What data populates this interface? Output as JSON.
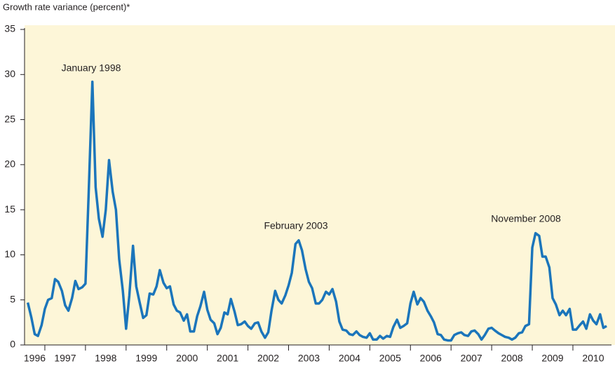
{
  "chart_data": {
    "type": "line",
    "y_label": "Growth rate variance (percent)*",
    "annotations": [
      "January 1998",
      "February 2003",
      "November 2008"
    ],
    "x": [
      1996.58,
      1996.67,
      1996.75,
      1996.83,
      1996.92,
      1997,
      1997.08,
      1997.17,
      1997.25,
      1997.33,
      1997.42,
      1997.5,
      1997.58,
      1997.67,
      1997.75,
      1997.83,
      1997.92,
      1998,
      1998.08,
      1998.17,
      1998.25,
      1998.33,
      1998.42,
      1998.5,
      1998.58,
      1998.67,
      1998.75,
      1998.83,
      1998.92,
      1999,
      1999.08,
      1999.17,
      1999.25,
      1999.33,
      1999.42,
      1999.5,
      1999.58,
      1999.67,
      1999.75,
      1999.83,
      1999.92,
      2000,
      2000.08,
      2000.17,
      2000.25,
      2000.33,
      2000.42,
      2000.5,
      2000.58,
      2000.67,
      2000.75,
      2000.83,
      2000.92,
      2001,
      2001.08,
      2001.17,
      2001.25,
      2001.33,
      2001.42,
      2001.5,
      2001.58,
      2001.67,
      2001.75,
      2001.83,
      2001.92,
      2002,
      2002.08,
      2002.17,
      2002.25,
      2002.33,
      2002.42,
      2002.5,
      2002.58,
      2002.67,
      2002.75,
      2002.83,
      2002.92,
      2003,
      2003.08,
      2003.17,
      2003.25,
      2003.33,
      2003.42,
      2003.5,
      2003.58,
      2003.67,
      2003.75,
      2003.83,
      2003.92,
      2004,
      2004.08,
      2004.17,
      2004.25,
      2004.33,
      2004.42,
      2004.5,
      2004.58,
      2004.67,
      2004.75,
      2004.83,
      2004.92,
      2005,
      2005.08,
      2005.17,
      2005.25,
      2005.33,
      2005.42,
      2005.5,
      2005.58,
      2005.67,
      2005.75,
      2005.83,
      2005.92,
      2006,
      2006.08,
      2006.17,
      2006.25,
      2006.33,
      2006.42,
      2006.5,
      2006.58,
      2006.67,
      2006.75,
      2006.83,
      2006.92,
      2007,
      2007.08,
      2007.17,
      2007.25,
      2007.33,
      2007.42,
      2007.5,
      2007.58,
      2007.67,
      2007.75,
      2007.83,
      2007.92,
      2008,
      2008.08,
      2008.17,
      2008.25,
      2008.33,
      2008.42,
      2008.5,
      2008.58,
      2008.67,
      2008.75,
      2008.83,
      2008.92,
      2009,
      2009.08,
      2009.17,
      2009.25,
      2009.33,
      2009.42,
      2009.5,
      2009.58,
      2009.67,
      2009.75,
      2009.83,
      2009.92,
      2010,
      2010.08,
      2010.17,
      2010.25,
      2010.33,
      2010.42,
      2010.5,
      2010.58,
      2010.67,
      2010.75,
      2010.83
    ],
    "values": [
      4.7,
      3.0,
      1.2,
      1.0,
      2.2,
      4.0,
      5.0,
      5.2,
      7.3,
      7.0,
      6.0,
      4.4,
      3.8,
      5.2,
      7.1,
      6.2,
      6.4,
      6.8,
      17,
      29.2,
      17.5,
      14,
      12,
      15,
      20.5,
      17,
      15,
      9.5,
      6,
      1.8,
      5.5,
      11,
      6.5,
      4.8,
      3.0,
      3.3,
      5.7,
      5.6,
      6.5,
      8.3,
      6.9,
      6.3,
      6.5,
      4.5,
      3.8,
      3.6,
      2.7,
      3.4,
      1.5,
      1.5,
      3.2,
      4.3,
      5.9,
      3.9,
      2.8,
      2.4,
      1.2,
      1.9,
      3.6,
      3.4,
      5.1,
      3.7,
      2.2,
      2.3,
      2.6,
      2.1,
      1.8,
      2.4,
      2.5,
      1.5,
      0.8,
      1.4,
      3.8,
      6.0,
      5.0,
      4.6,
      5.5,
      6.6,
      8.0,
      11.2,
      11.6,
      10.5,
      8.4,
      7.0,
      6.3,
      4.6,
      4.6,
      5.0,
      5.9,
      5.6,
      6.2,
      4.8,
      2.6,
      1.7,
      1.6,
      1.2,
      1.1,
      1.5,
      1.1,
      0.9,
      0.8,
      1.3,
      0.6,
      0.6,
      1.0,
      0.7,
      1.0,
      0.9,
      2.0,
      2.8,
      1.9,
      2.1,
      2.4,
      4.6,
      5.9,
      4.5,
      5.2,
      4.8,
      3.8,
      3.2,
      2.5,
      1.2,
      1.1,
      0.6,
      0.5,
      0.5,
      1.1,
      1.3,
      1.4,
      1.1,
      1.0,
      1.5,
      1.6,
      1.2,
      0.6,
      1.1,
      1.8,
      1.9,
      1.6,
      1.3,
      1.1,
      0.9,
      0.8,
      0.6,
      0.8,
      1.3,
      1.4,
      2.1,
      2.3,
      10.8,
      12.4,
      12.1,
      9.8,
      9.8,
      8.6,
      5.2,
      4.5,
      3.3,
      3.8,
      3.3,
      4.0,
      1.7,
      1.7,
      2.2,
      2.6,
      1.8,
      3.4,
      2.7,
      2.3,
      3.4,
      1.9,
      2.1
    ],
    "color": "#1b75bb",
    "xlim": [
      1996.5,
      2010.95
    ],
    "xticks": [
      {
        "value": 1996.75,
        "label": "1996"
      },
      {
        "value": 1997.5,
        "label": "1997"
      },
      {
        "value": 1998.5,
        "label": "1998"
      },
      {
        "value": 1999.5,
        "label": "1999"
      },
      {
        "value": 2000.5,
        "label": "2000"
      },
      {
        "value": 2001.5,
        "label": "2001"
      },
      {
        "value": 2002.5,
        "label": "2002"
      },
      {
        "value": 2003.5,
        "label": "2003"
      },
      {
        "value": 2004.5,
        "label": "2004"
      },
      {
        "value": 2005.5,
        "label": "2005"
      },
      {
        "value": 2006.5,
        "label": "2006"
      },
      {
        "value": 2007.5,
        "label": "2007"
      },
      {
        "value": 2008.5,
        "label": "2008"
      },
      {
        "value": 2009.5,
        "label": "2009"
      },
      {
        "value": 2010.5,
        "label": "2010"
      }
    ],
    "ylim": [
      0,
      35
    ],
    "yticks": [
      0,
      5,
      10,
      15,
      20,
      25,
      30,
      35
    ],
    "grid": false
  }
}
